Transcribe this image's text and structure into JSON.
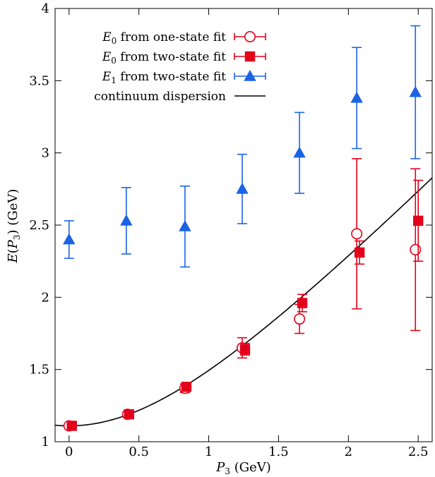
{
  "chart_data": {
    "type": "scatter",
    "xlabel": "P3 (GeV)",
    "ylabel": "E(P3) (GeV)",
    "xlim": [
      -0.1,
      2.6
    ],
    "ylim": [
      1,
      4
    ],
    "x_ticks": [
      "0",
      "0.5",
      "1",
      "1.5",
      "2",
      "2.5"
    ],
    "y_ticks": [
      "1",
      "1.5",
      "2",
      "2.5",
      "3",
      "3.5",
      "4"
    ],
    "grid": false,
    "legend_position": "top-left",
    "series": [
      {
        "name": "E0 from one-state fit",
        "marker": "open-circle",
        "color": "#e3001b",
        "points": [
          {
            "x": 0.0,
            "y": 1.11,
            "err": 0.01
          },
          {
            "x": 0.42,
            "y": 1.19,
            "err": 0.02
          },
          {
            "x": 0.83,
            "y": 1.37,
            "err": 0.03
          },
          {
            "x": 1.24,
            "y": 1.65,
            "err": 0.07
          },
          {
            "x": 1.65,
            "y": 1.85,
            "err": 0.1
          },
          {
            "x": 2.06,
            "y": 2.44,
            "err": 0.52
          },
          {
            "x": 2.48,
            "y": 2.33,
            "err": 0.56
          }
        ]
      },
      {
        "name": "E0 from two-state fit",
        "marker": "filled-square",
        "color": "#e3001b",
        "points": [
          {
            "x": 0.02,
            "y": 1.11,
            "err": 0.01
          },
          {
            "x": 0.43,
            "y": 1.19,
            "err": 0.02
          },
          {
            "x": 0.84,
            "y": 1.38,
            "err": 0.02
          },
          {
            "x": 1.26,
            "y": 1.64,
            "err": 0.04
          },
          {
            "x": 1.67,
            "y": 1.96,
            "err": 0.06
          },
          {
            "x": 2.08,
            "y": 2.31,
            "err": 0.08
          },
          {
            "x": 2.5,
            "y": 2.53,
            "err": 0.28
          }
        ]
      },
      {
        "name": "E1 from two-state fit",
        "marker": "filled-triangle",
        "color": "#1a63e6",
        "points": [
          {
            "x": 0.0,
            "y": 2.4,
            "err": 0.13
          },
          {
            "x": 0.41,
            "y": 2.53,
            "err": 0.23
          },
          {
            "x": 0.83,
            "y": 2.49,
            "err": 0.28
          },
          {
            "x": 1.24,
            "y": 2.75,
            "err": 0.24
          },
          {
            "x": 1.65,
            "y": 3.0,
            "err": 0.28
          },
          {
            "x": 2.06,
            "y": 3.38,
            "err": 0.35
          },
          {
            "x": 2.48,
            "y": 3.42,
            "err": 0.46
          }
        ]
      }
    ],
    "curve": {
      "name": "continuum dispersion",
      "color": "#000000",
      "mass": 1.11,
      "x_range": [
        -0.1,
        2.6
      ]
    },
    "legend": [
      {
        "sym": "E",
        "sub": "0",
        "text": " from one-state fit"
      },
      {
        "sym": "E",
        "sub": "0",
        "text": " from two-state fit"
      },
      {
        "sym": "E",
        "sub": "1",
        "text": " from two-state fit"
      },
      {
        "sym": "",
        "sub": "",
        "text": "continuum dispersion"
      }
    ]
  }
}
